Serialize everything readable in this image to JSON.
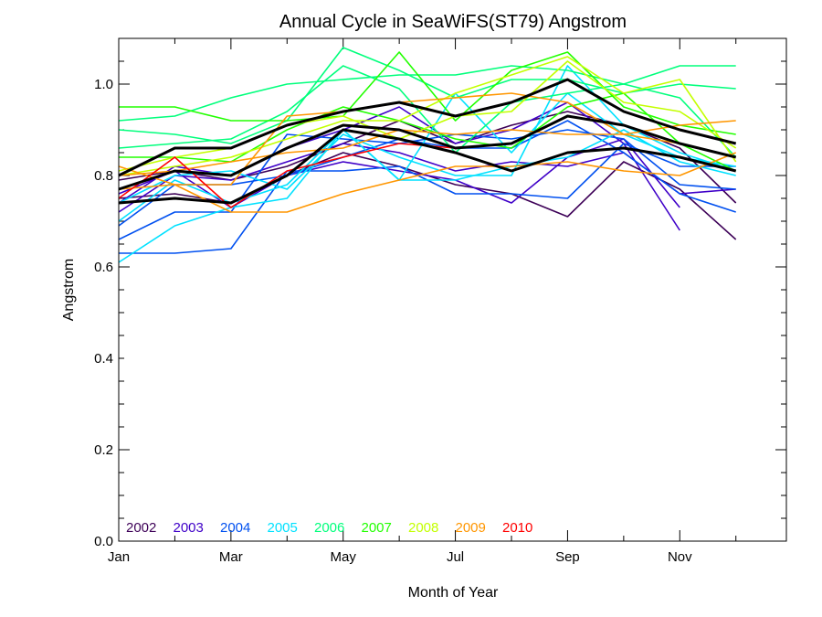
{
  "chart_data": {
    "type": "line",
    "title": "Annual Cycle in SeaWiFS(ST79) Angstrom",
    "xlabel": "Month of Year",
    "ylabel": "Angstrom",
    "xlim": [
      1,
      12.9
    ],
    "ylim": [
      0.0,
      1.1
    ],
    "x_ticks": [
      {
        "value": 1,
        "label": "Jan"
      },
      {
        "value": 3,
        "label": "Mar"
      },
      {
        "value": 5,
        "label": "May"
      },
      {
        "value": 7,
        "label": "Jul"
      },
      {
        "value": 9,
        "label": "Sep"
      },
      {
        "value": 11,
        "label": "Nov"
      }
    ],
    "y_ticks": [
      {
        "value": 0.0,
        "label": "0.0"
      },
      {
        "value": 0.2,
        "label": "0.2"
      },
      {
        "value": 0.4,
        "label": "0.4"
      },
      {
        "value": 0.6,
        "label": "0.6"
      },
      {
        "value": 0.8,
        "label": "0.8"
      },
      {
        "value": 1.0,
        "label": "1.0"
      }
    ],
    "legend_placement": "bottom-left",
    "legend": [
      {
        "label": "2002",
        "color": "#3d0057"
      },
      {
        "label": "2003",
        "color": "#3f00c8"
      },
      {
        "label": "2004",
        "color": "#0050f0"
      },
      {
        "label": "2005",
        "color": "#00e1ff"
      },
      {
        "label": "2006",
        "color": "#00ff7c"
      },
      {
        "label": "2007",
        "color": "#22ff00"
      },
      {
        "label": "2008",
        "color": "#c3ff00"
      },
      {
        "label": "2009",
        "color": "#ff9600"
      },
      {
        "label": "2010",
        "color": "#ff0000"
      }
    ],
    "series": [
      {
        "color": "#3d0057",
        "x": [
          1,
          2,
          3,
          4,
          5,
          6,
          7,
          8,
          9,
          10,
          11,
          12
        ],
        "y": [
          0.79,
          0.81,
          0.79,
          0.82,
          0.87,
          0.92,
          0.87,
          0.91,
          0.94,
          0.91,
          0.86,
          0.74
        ]
      },
      {
        "color": "#3d0057",
        "x": [
          1,
          2,
          3,
          4,
          5,
          6,
          7,
          8,
          9,
          10,
          11,
          12
        ],
        "y": [
          0.75,
          0.76,
          0.74,
          0.8,
          0.85,
          0.82,
          0.78,
          0.76,
          0.71,
          0.83,
          0.77,
          0.66
        ]
      },
      {
        "color": "#3f00c8",
        "x": [
          1,
          2,
          3,
          4,
          5,
          6,
          7,
          8,
          9,
          10,
          11,
          12
        ],
        "y": [
          0.72,
          0.8,
          0.79,
          0.83,
          0.87,
          0.85,
          0.81,
          0.83,
          0.82,
          0.85,
          0.76,
          0.77
        ]
      },
      {
        "color": "#3f00c8",
        "x": [
          1,
          2,
          3,
          4,
          5,
          6,
          7,
          8,
          9,
          10,
          11
        ],
        "y": [
          0.76,
          0.81,
          0.73,
          0.8,
          0.83,
          0.81,
          0.79,
          0.74,
          0.84,
          0.88,
          0.73
        ]
      },
      {
        "color": "#3f00c8",
        "x": [
          1,
          2,
          3,
          4,
          5,
          6,
          7,
          8,
          9,
          10,
          11
        ],
        "y": [
          0.74,
          0.82,
          0.8,
          0.86,
          0.9,
          0.95,
          0.87,
          0.9,
          0.96,
          0.87,
          0.68
        ]
      },
      {
        "color": "#0050f0",
        "x": [
          1,
          2,
          3,
          4,
          5,
          6,
          7,
          8,
          9,
          10,
          11,
          12
        ],
        "y": [
          0.63,
          0.63,
          0.64,
          0.81,
          0.81,
          0.82,
          0.76,
          0.76,
          0.75,
          0.87,
          0.82,
          0.82
        ]
      },
      {
        "color": "#0050f0",
        "x": [
          1,
          2,
          3,
          4,
          5,
          6,
          7,
          8,
          9,
          10,
          11,
          12
        ],
        "y": [
          0.66,
          0.72,
          0.72,
          0.89,
          0.88,
          0.87,
          0.89,
          0.88,
          0.9,
          0.88,
          0.78,
          0.77
        ]
      },
      {
        "color": "#0050f0",
        "x": [
          1,
          2,
          3,
          4,
          5,
          6,
          7,
          8,
          9,
          10,
          11,
          12
        ],
        "y": [
          0.69,
          0.78,
          0.78,
          0.8,
          0.84,
          0.88,
          0.86,
          0.86,
          0.92,
          0.85,
          0.76,
          0.72
        ]
      },
      {
        "color": "#00e1ff",
        "x": [
          1,
          2,
          3,
          4,
          5,
          6,
          7,
          8,
          9,
          10,
          11,
          12
        ],
        "y": [
          0.61,
          0.69,
          0.73,
          0.75,
          0.9,
          0.79,
          0.79,
          0.82,
          0.84,
          0.9,
          0.83,
          0.8
        ]
      },
      {
        "color": "#00e1ff",
        "x": [
          1,
          2,
          3,
          4,
          5,
          6,
          7,
          8,
          9,
          10,
          11,
          12
        ],
        "y": [
          0.7,
          0.79,
          0.74,
          0.78,
          0.9,
          0.79,
          0.98,
          0.85,
          0.98,
          0.89,
          0.84,
          0.82
        ]
      },
      {
        "color": "#00e1ff",
        "x": [
          1,
          2,
          3,
          4,
          5,
          6,
          7,
          8,
          9,
          10,
          11,
          12
        ],
        "y": [
          0.74,
          0.8,
          0.81,
          0.77,
          0.89,
          0.84,
          0.8,
          0.8,
          1.04,
          0.91,
          0.85,
          0.81
        ]
      },
      {
        "color": "#00ff7c",
        "x": [
          1,
          2,
          3,
          4,
          5,
          6,
          7,
          8,
          9,
          10,
          11,
          12
        ],
        "y": [
          0.92,
          0.93,
          0.97,
          1.0,
          1.01,
          1.02,
          1.02,
          1.04,
          1.03,
          1.0,
          1.04,
          1.04
        ]
      },
      {
        "color": "#00ff7c",
        "x": [
          1,
          2,
          3,
          4,
          5,
          6,
          7,
          8,
          9,
          10,
          11,
          12
        ],
        "y": [
          0.9,
          0.89,
          0.87,
          0.92,
          1.08,
          1.03,
          0.97,
          1.01,
          1.01,
          0.98,
          1.0,
          0.99
        ]
      },
      {
        "color": "#00ff7c",
        "x": [
          1,
          2,
          3,
          4,
          5,
          6,
          7,
          8,
          9,
          10,
          11,
          12
        ],
        "y": [
          0.86,
          0.87,
          0.88,
          0.94,
          1.04,
          0.99,
          0.85,
          0.96,
          0.98,
          1.0,
          0.97,
          0.84
        ]
      },
      {
        "color": "#22ff00",
        "x": [
          1,
          2,
          3,
          4,
          5,
          6,
          7,
          8,
          9,
          10,
          11,
          12
        ],
        "y": [
          0.95,
          0.95,
          0.92,
          0.92,
          0.93,
          1.07,
          0.92,
          1.03,
          1.07,
          0.95,
          0.91,
          0.89
        ]
      },
      {
        "color": "#22ff00",
        "x": [
          1,
          2,
          3,
          4,
          5,
          6,
          7,
          8,
          9,
          10,
          11,
          12
        ],
        "y": [
          0.84,
          0.84,
          0.83,
          0.9,
          0.95,
          0.92,
          0.88,
          0.86,
          0.95,
          0.98,
          0.87,
          0.81
        ]
      },
      {
        "color": "#c3ff00",
        "x": [
          1,
          2,
          3,
          4,
          5,
          6,
          7,
          8,
          9,
          10,
          11,
          12
        ],
        "y": [
          0.8,
          0.82,
          0.84,
          0.88,
          0.92,
          0.92,
          0.98,
          1.02,
          1.06,
          0.98,
          1.01,
          0.83
        ]
      },
      {
        "color": "#c3ff00",
        "x": [
          1,
          2,
          3,
          4,
          5,
          6,
          7,
          8,
          9,
          10,
          11,
          12
        ],
        "y": [
          0.81,
          0.84,
          0.86,
          0.91,
          0.93,
          0.88,
          0.93,
          0.94,
          1.05,
          0.96,
          0.94,
          0.86
        ]
      },
      {
        "color": "#ff9600",
        "x": [
          1,
          2,
          3,
          4,
          5,
          6,
          7,
          8,
          9,
          10,
          11,
          12
        ],
        "y": [
          0.82,
          0.78,
          0.72,
          0.72,
          0.76,
          0.79,
          0.82,
          0.82,
          0.83,
          0.81,
          0.8,
          0.85
        ]
      },
      {
        "color": "#ff9600",
        "x": [
          1,
          2,
          3,
          4,
          5,
          6,
          7,
          8,
          9,
          10,
          11,
          12
        ],
        "y": [
          0.77,
          0.78,
          0.78,
          0.93,
          0.94,
          0.96,
          0.97,
          0.98,
          0.96,
          0.89,
          0.91,
          0.92
        ]
      },
      {
        "color": "#ff9600",
        "x": [
          1,
          2,
          3,
          4,
          5,
          6,
          7,
          8,
          9,
          10,
          11,
          12
        ],
        "y": [
          0.8,
          0.81,
          0.83,
          0.85,
          0.86,
          0.9,
          0.89,
          0.9,
          0.89,
          0.89,
          0.87,
          0.84
        ]
      },
      {
        "color": "#ff0000",
        "x": [
          1,
          2,
          3,
          4,
          5,
          6,
          7,
          8
        ],
        "y": [
          0.75,
          0.84,
          0.73,
          0.81,
          0.84,
          0.87,
          0.86,
          0.87
        ]
      },
      {
        "color": "#000000",
        "width": 3,
        "x": [
          1,
          2,
          3,
          4,
          5,
          6,
          7,
          8,
          9,
          10,
          11,
          12
        ],
        "y": [
          0.8,
          0.86,
          0.86,
          0.91,
          0.94,
          0.96,
          0.93,
          0.96,
          1.01,
          0.94,
          0.9,
          0.87
        ]
      },
      {
        "color": "#000000",
        "width": 3,
        "x": [
          1,
          2,
          3,
          4,
          5,
          6,
          7,
          8,
          9,
          10,
          11,
          12
        ],
        "y": [
          0.77,
          0.81,
          0.8,
          0.86,
          0.91,
          0.9,
          0.86,
          0.87,
          0.93,
          0.91,
          0.87,
          0.84
        ]
      },
      {
        "color": "#000000",
        "width": 3,
        "x": [
          1,
          2,
          3,
          4,
          5,
          6,
          7,
          8,
          9,
          10,
          11,
          12
        ],
        "y": [
          0.74,
          0.75,
          0.74,
          0.8,
          0.9,
          0.88,
          0.85,
          0.81,
          0.85,
          0.86,
          0.84,
          0.81
        ]
      }
    ]
  }
}
